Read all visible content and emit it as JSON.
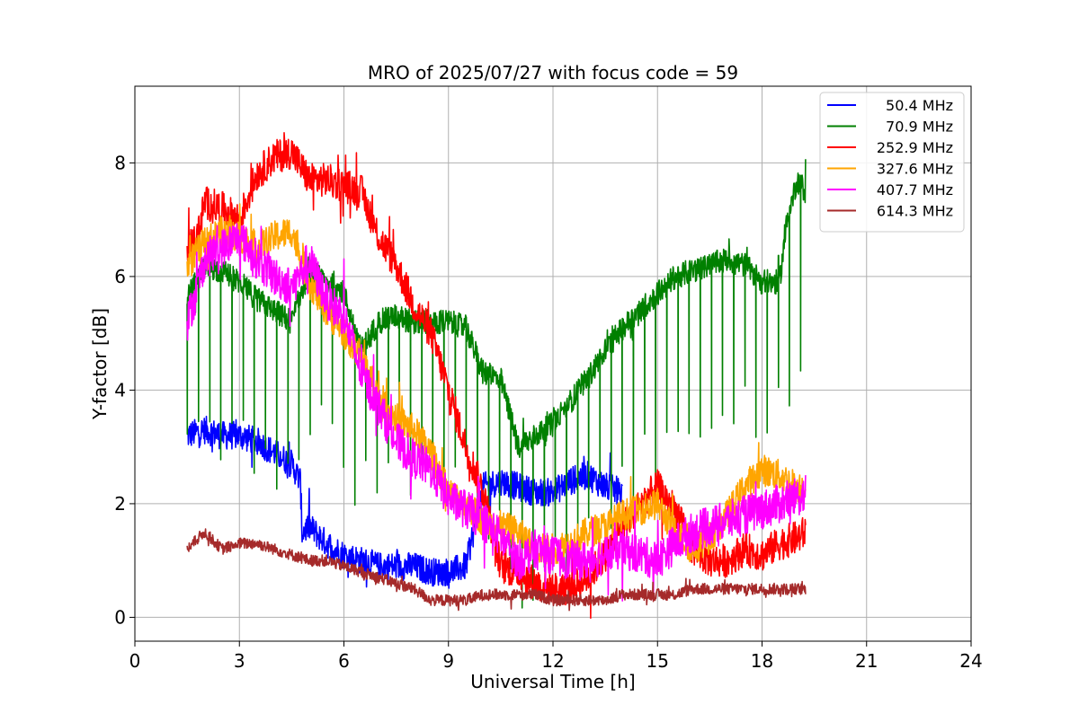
{
  "chart_data": {
    "type": "line",
    "title": "MRO of 2025/07/27 with focus code = 59",
    "xlabel": "Universal Time [h]",
    "ylabel": "Y-factor [dB]",
    "xlim": [
      0,
      24
    ],
    "ylim": [
      -0.42,
      9.35
    ],
    "xticks": [
      0,
      3,
      6,
      9,
      12,
      15,
      18,
      21,
      24
    ],
    "yticks": [
      0,
      2,
      4,
      6,
      8
    ],
    "grid": true,
    "legend_position": "top-right",
    "series": [
      {
        "name": "50.4 MHz",
        "color": "#0000ff",
        "x": [
          1.5,
          2.0,
          2.5,
          3.0,
          3.5,
          4.0,
          4.5,
          4.75,
          4.8,
          5.0,
          5.5,
          6.0,
          6.5,
          7.0,
          7.5,
          8.0,
          8.5,
          9.0,
          9.5,
          10.0,
          10.5,
          11.0,
          11.5,
          12.0,
          12.5,
          13.0,
          13.5,
          14.0
        ],
        "y": [
          3.2,
          3.3,
          3.2,
          3.2,
          3.1,
          2.9,
          2.7,
          2.4,
          1.5,
          1.6,
          1.3,
          1.1,
          1.0,
          0.9,
          0.9,
          0.9,
          0.8,
          0.8,
          0.9,
          2.3,
          2.4,
          2.3,
          2.2,
          2.2,
          2.4,
          2.5,
          2.3,
          2.2
        ],
        "noise": 0.25
      },
      {
        "name": "70.9 MHz",
        "color": "#008000",
        "x": [
          1.5,
          2.0,
          2.5,
          3.0,
          3.5,
          4.0,
          4.5,
          5.0,
          5.5,
          6.0,
          6.5,
          7.0,
          7.5,
          8.0,
          8.5,
          9.0,
          9.5,
          10.0,
          10.5,
          11.0,
          11.5,
          12.0,
          12.5,
          13.0,
          13.5,
          14.0,
          14.5,
          15.0,
          15.5,
          16.0,
          16.5,
          17.0,
          17.5,
          18.0,
          18.5,
          18.7,
          19.0,
          19.25
        ],
        "y": [
          5.6,
          6.2,
          6.1,
          5.9,
          5.6,
          5.4,
          5.2,
          6.1,
          5.9,
          5.7,
          4.7,
          5.2,
          5.3,
          5.2,
          5.2,
          5.2,
          5.1,
          4.3,
          4.2,
          3.0,
          3.2,
          3.4,
          3.8,
          4.2,
          4.7,
          5.1,
          5.4,
          5.7,
          6.0,
          6.1,
          6.2,
          6.3,
          6.2,
          5.9,
          5.9,
          6.9,
          7.7,
          7.5
        ],
        "noise": 0.22,
        "spike_interval": 0.32,
        "spike_depth": 3.2
      },
      {
        "name": "252.9 MHz",
        "color": "#ff0000",
        "x": [
          1.5,
          1.8,
          2.0,
          2.5,
          3.0,
          3.5,
          4.0,
          4.5,
          5.0,
          5.5,
          6.0,
          6.5,
          7.0,
          7.5,
          8.0,
          8.5,
          9.0,
          9.5,
          10.0,
          10.5,
          11.0,
          11.5,
          12.0,
          12.5,
          13.0,
          13.5,
          14.0,
          14.5,
          15.0,
          15.5,
          16.0,
          16.5,
          17.0,
          17.5,
          18.0,
          18.5,
          19.0,
          19.25
        ],
        "y": [
          6.5,
          6.7,
          7.3,
          7.2,
          7.0,
          7.8,
          8.1,
          8.2,
          7.7,
          7.7,
          7.6,
          7.5,
          6.7,
          6.2,
          5.5,
          5.0,
          4.0,
          3.0,
          2.2,
          0.9,
          0.8,
          0.6,
          0.5,
          0.5,
          0.7,
          1.1,
          1.6,
          2.0,
          2.3,
          1.9,
          1.2,
          1.0,
          1.0,
          1.2,
          1.1,
          1.3,
          1.4,
          1.5
        ],
        "noise": 0.3
      },
      {
        "name": "327.6 MHz",
        "color": "#ffa500",
        "x": [
          1.5,
          2.0,
          2.5,
          3.0,
          3.5,
          4.0,
          4.5,
          5.0,
          5.5,
          6.0,
          6.5,
          7.0,
          7.5,
          8.0,
          8.5,
          9.0,
          9.5,
          10.0,
          10.5,
          11.0,
          11.5,
          12.0,
          12.5,
          13.0,
          13.5,
          14.0,
          14.5,
          15.0,
          15.5,
          16.0,
          16.5,
          17.0,
          17.5,
          18.0,
          18.5,
          19.0,
          19.25
        ],
        "y": [
          6.2,
          6.6,
          6.8,
          6.7,
          6.5,
          6.7,
          6.8,
          5.9,
          5.4,
          5.0,
          4.6,
          3.9,
          3.5,
          3.3,
          2.9,
          2.2,
          2.0,
          1.7,
          1.6,
          1.5,
          1.2,
          1.2,
          1.3,
          1.5,
          1.6,
          1.8,
          1.9,
          2.0,
          1.5,
          1.2,
          1.4,
          1.8,
          2.3,
          2.6,
          2.5,
          2.3,
          2.3
        ],
        "noise": 0.28
      },
      {
        "name": "407.7 MHz",
        "color": "#ff00ff",
        "x": [
          1.5,
          1.8,
          2.0,
          2.5,
          3.0,
          3.5,
          4.0,
          4.5,
          5.0,
          5.5,
          6.0,
          6.5,
          7.0,
          7.5,
          8.0,
          8.5,
          9.0,
          9.5,
          10.0,
          10.5,
          11.0,
          11.5,
          12.0,
          12.5,
          13.0,
          13.5,
          14.0,
          14.5,
          15.0,
          15.5,
          16.0,
          16.5,
          17.0,
          17.5,
          18.0,
          18.5,
          19.0,
          19.25
        ],
        "y": [
          5.2,
          5.8,
          6.3,
          6.5,
          6.7,
          6.3,
          6.0,
          5.8,
          6.3,
          5.6,
          5.3,
          4.3,
          3.7,
          3.1,
          2.8,
          2.6,
          2.1,
          1.9,
          1.7,
          1.4,
          1.0,
          1.2,
          1.1,
          1.0,
          1.0,
          1.1,
          1.2,
          1.1,
          1.0,
          1.3,
          1.5,
          1.6,
          1.7,
          1.8,
          1.9,
          2.0,
          2.1,
          2.2
        ],
        "noise": 0.35
      },
      {
        "name": "614.3 MHz",
        "color": "#a52a2a",
        "x": [
          1.5,
          2.0,
          2.5,
          3.0,
          3.5,
          4.0,
          4.5,
          5.0,
          5.5,
          6.0,
          6.5,
          7.0,
          7.5,
          8.0,
          8.5,
          9.0,
          9.5,
          10.0,
          10.5,
          11.0,
          11.5,
          12.0,
          12.5,
          13.0,
          13.5,
          14.0,
          14.5,
          15.0,
          15.5,
          16.0,
          16.5,
          17.0,
          17.5,
          18.0,
          18.5,
          19.0,
          19.25
        ],
        "y": [
          1.2,
          1.5,
          1.2,
          1.3,
          1.3,
          1.2,
          1.1,
          1.0,
          1.0,
          0.9,
          0.8,
          0.7,
          0.6,
          0.5,
          0.3,
          0.3,
          0.3,
          0.4,
          0.4,
          0.4,
          0.4,
          0.3,
          0.3,
          0.3,
          0.3,
          0.4,
          0.4,
          0.4,
          0.4,
          0.5,
          0.5,
          0.5,
          0.5,
          0.5,
          0.5,
          0.5,
          0.5
        ],
        "noise": 0.1
      }
    ]
  }
}
